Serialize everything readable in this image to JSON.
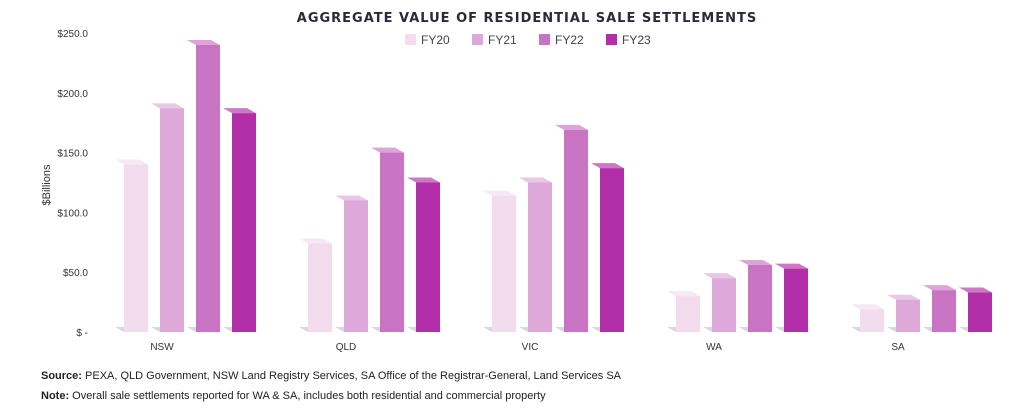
{
  "chart_data": {
    "type": "bar",
    "title": "AGGREGATE VALUE OF RESIDENTIAL SALE SETTLEMENTS",
    "ylabel": "$Billions",
    "xlabel": "",
    "categories": [
      "NSW",
      "QLD",
      "VIC",
      "WA",
      "SA"
    ],
    "series": [
      {
        "name": "FY20",
        "color": "#f2dcee",
        "values": [
          140,
          74,
          114,
          30,
          19
        ]
      },
      {
        "name": "FY21",
        "color": "#dea8da",
        "values": [
          187,
          110,
          125,
          45,
          27
        ]
      },
      {
        "name": "FY22",
        "color": "#c973c4",
        "values": [
          240,
          150,
          169,
          56,
          35
        ]
      },
      {
        "name": "FY23",
        "color": "#b22ea8",
        "values": [
          183,
          125,
          137,
          53,
          33
        ]
      }
    ],
    "yticks": [
      {
        "value": 0,
        "label": "$ -"
      },
      {
        "value": 50,
        "label": "$50.0"
      },
      {
        "value": 100,
        "label": "$100.0"
      },
      {
        "value": 150,
        "label": "$150.0"
      },
      {
        "value": 200,
        "label": "$200.0"
      },
      {
        "value": 250,
        "label": "$250.0"
      }
    ],
    "ylim": [
      0,
      250
    ],
    "legend_position": "top-center",
    "grid": false
  },
  "footnotes": {
    "source_label": "Source:",
    "source_text": " PEXA, QLD Government, NSW Land Registry Services, SA Office of the Registrar-General, Land Services SA",
    "note_label": "Note:",
    "note_text": " Overall sale settlements reported for WA & SA, includes both residential and commercial property"
  }
}
